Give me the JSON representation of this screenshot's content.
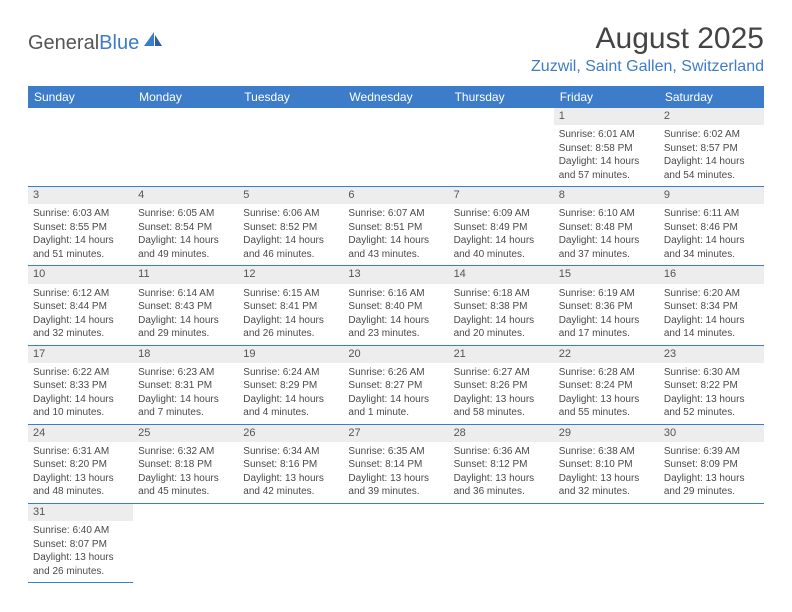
{
  "logo": {
    "text_general": "General",
    "text_blue": "Blue"
  },
  "header": {
    "month_title": "August 2025",
    "location": "Zuzwil, Saint Gallen, Switzerland"
  },
  "colors": {
    "header_bg": "#3d7cc9",
    "header_text": "#ffffff",
    "daynum_bg": "#ededed",
    "cell_border": "#3d7cc9",
    "location_color": "#3d7cc9"
  },
  "weekdays": [
    "Sunday",
    "Monday",
    "Tuesday",
    "Wednesday",
    "Thursday",
    "Friday",
    "Saturday"
  ],
  "weeks": [
    [
      null,
      null,
      null,
      null,
      null,
      {
        "n": "1",
        "sunrise": "Sunrise: 6:01 AM",
        "sunset": "Sunset: 8:58 PM",
        "daylight": "Daylight: 14 hours and 57 minutes."
      },
      {
        "n": "2",
        "sunrise": "Sunrise: 6:02 AM",
        "sunset": "Sunset: 8:57 PM",
        "daylight": "Daylight: 14 hours and 54 minutes."
      }
    ],
    [
      {
        "n": "3",
        "sunrise": "Sunrise: 6:03 AM",
        "sunset": "Sunset: 8:55 PM",
        "daylight": "Daylight: 14 hours and 51 minutes."
      },
      {
        "n": "4",
        "sunrise": "Sunrise: 6:05 AM",
        "sunset": "Sunset: 8:54 PM",
        "daylight": "Daylight: 14 hours and 49 minutes."
      },
      {
        "n": "5",
        "sunrise": "Sunrise: 6:06 AM",
        "sunset": "Sunset: 8:52 PM",
        "daylight": "Daylight: 14 hours and 46 minutes."
      },
      {
        "n": "6",
        "sunrise": "Sunrise: 6:07 AM",
        "sunset": "Sunset: 8:51 PM",
        "daylight": "Daylight: 14 hours and 43 minutes."
      },
      {
        "n": "7",
        "sunrise": "Sunrise: 6:09 AM",
        "sunset": "Sunset: 8:49 PM",
        "daylight": "Daylight: 14 hours and 40 minutes."
      },
      {
        "n": "8",
        "sunrise": "Sunrise: 6:10 AM",
        "sunset": "Sunset: 8:48 PM",
        "daylight": "Daylight: 14 hours and 37 minutes."
      },
      {
        "n": "9",
        "sunrise": "Sunrise: 6:11 AM",
        "sunset": "Sunset: 8:46 PM",
        "daylight": "Daylight: 14 hours and 34 minutes."
      }
    ],
    [
      {
        "n": "10",
        "sunrise": "Sunrise: 6:12 AM",
        "sunset": "Sunset: 8:44 PM",
        "daylight": "Daylight: 14 hours and 32 minutes."
      },
      {
        "n": "11",
        "sunrise": "Sunrise: 6:14 AM",
        "sunset": "Sunset: 8:43 PM",
        "daylight": "Daylight: 14 hours and 29 minutes."
      },
      {
        "n": "12",
        "sunrise": "Sunrise: 6:15 AM",
        "sunset": "Sunset: 8:41 PM",
        "daylight": "Daylight: 14 hours and 26 minutes."
      },
      {
        "n": "13",
        "sunrise": "Sunrise: 6:16 AM",
        "sunset": "Sunset: 8:40 PM",
        "daylight": "Daylight: 14 hours and 23 minutes."
      },
      {
        "n": "14",
        "sunrise": "Sunrise: 6:18 AM",
        "sunset": "Sunset: 8:38 PM",
        "daylight": "Daylight: 14 hours and 20 minutes."
      },
      {
        "n": "15",
        "sunrise": "Sunrise: 6:19 AM",
        "sunset": "Sunset: 8:36 PM",
        "daylight": "Daylight: 14 hours and 17 minutes."
      },
      {
        "n": "16",
        "sunrise": "Sunrise: 6:20 AM",
        "sunset": "Sunset: 8:34 PM",
        "daylight": "Daylight: 14 hours and 14 minutes."
      }
    ],
    [
      {
        "n": "17",
        "sunrise": "Sunrise: 6:22 AM",
        "sunset": "Sunset: 8:33 PM",
        "daylight": "Daylight: 14 hours and 10 minutes."
      },
      {
        "n": "18",
        "sunrise": "Sunrise: 6:23 AM",
        "sunset": "Sunset: 8:31 PM",
        "daylight": "Daylight: 14 hours and 7 minutes."
      },
      {
        "n": "19",
        "sunrise": "Sunrise: 6:24 AM",
        "sunset": "Sunset: 8:29 PM",
        "daylight": "Daylight: 14 hours and 4 minutes."
      },
      {
        "n": "20",
        "sunrise": "Sunrise: 6:26 AM",
        "sunset": "Sunset: 8:27 PM",
        "daylight": "Daylight: 14 hours and 1 minute."
      },
      {
        "n": "21",
        "sunrise": "Sunrise: 6:27 AM",
        "sunset": "Sunset: 8:26 PM",
        "daylight": "Daylight: 13 hours and 58 minutes."
      },
      {
        "n": "22",
        "sunrise": "Sunrise: 6:28 AM",
        "sunset": "Sunset: 8:24 PM",
        "daylight": "Daylight: 13 hours and 55 minutes."
      },
      {
        "n": "23",
        "sunrise": "Sunrise: 6:30 AM",
        "sunset": "Sunset: 8:22 PM",
        "daylight": "Daylight: 13 hours and 52 minutes."
      }
    ],
    [
      {
        "n": "24",
        "sunrise": "Sunrise: 6:31 AM",
        "sunset": "Sunset: 8:20 PM",
        "daylight": "Daylight: 13 hours and 48 minutes."
      },
      {
        "n": "25",
        "sunrise": "Sunrise: 6:32 AM",
        "sunset": "Sunset: 8:18 PM",
        "daylight": "Daylight: 13 hours and 45 minutes."
      },
      {
        "n": "26",
        "sunrise": "Sunrise: 6:34 AM",
        "sunset": "Sunset: 8:16 PM",
        "daylight": "Daylight: 13 hours and 42 minutes."
      },
      {
        "n": "27",
        "sunrise": "Sunrise: 6:35 AM",
        "sunset": "Sunset: 8:14 PM",
        "daylight": "Daylight: 13 hours and 39 minutes."
      },
      {
        "n": "28",
        "sunrise": "Sunrise: 6:36 AM",
        "sunset": "Sunset: 8:12 PM",
        "daylight": "Daylight: 13 hours and 36 minutes."
      },
      {
        "n": "29",
        "sunrise": "Sunrise: 6:38 AM",
        "sunset": "Sunset: 8:10 PM",
        "daylight": "Daylight: 13 hours and 32 minutes."
      },
      {
        "n": "30",
        "sunrise": "Sunrise: 6:39 AM",
        "sunset": "Sunset: 8:09 PM",
        "daylight": "Daylight: 13 hours and 29 minutes."
      }
    ],
    [
      {
        "n": "31",
        "sunrise": "Sunrise: 6:40 AM",
        "sunset": "Sunset: 8:07 PM",
        "daylight": "Daylight: 13 hours and 26 minutes."
      },
      null,
      null,
      null,
      null,
      null,
      null
    ]
  ]
}
